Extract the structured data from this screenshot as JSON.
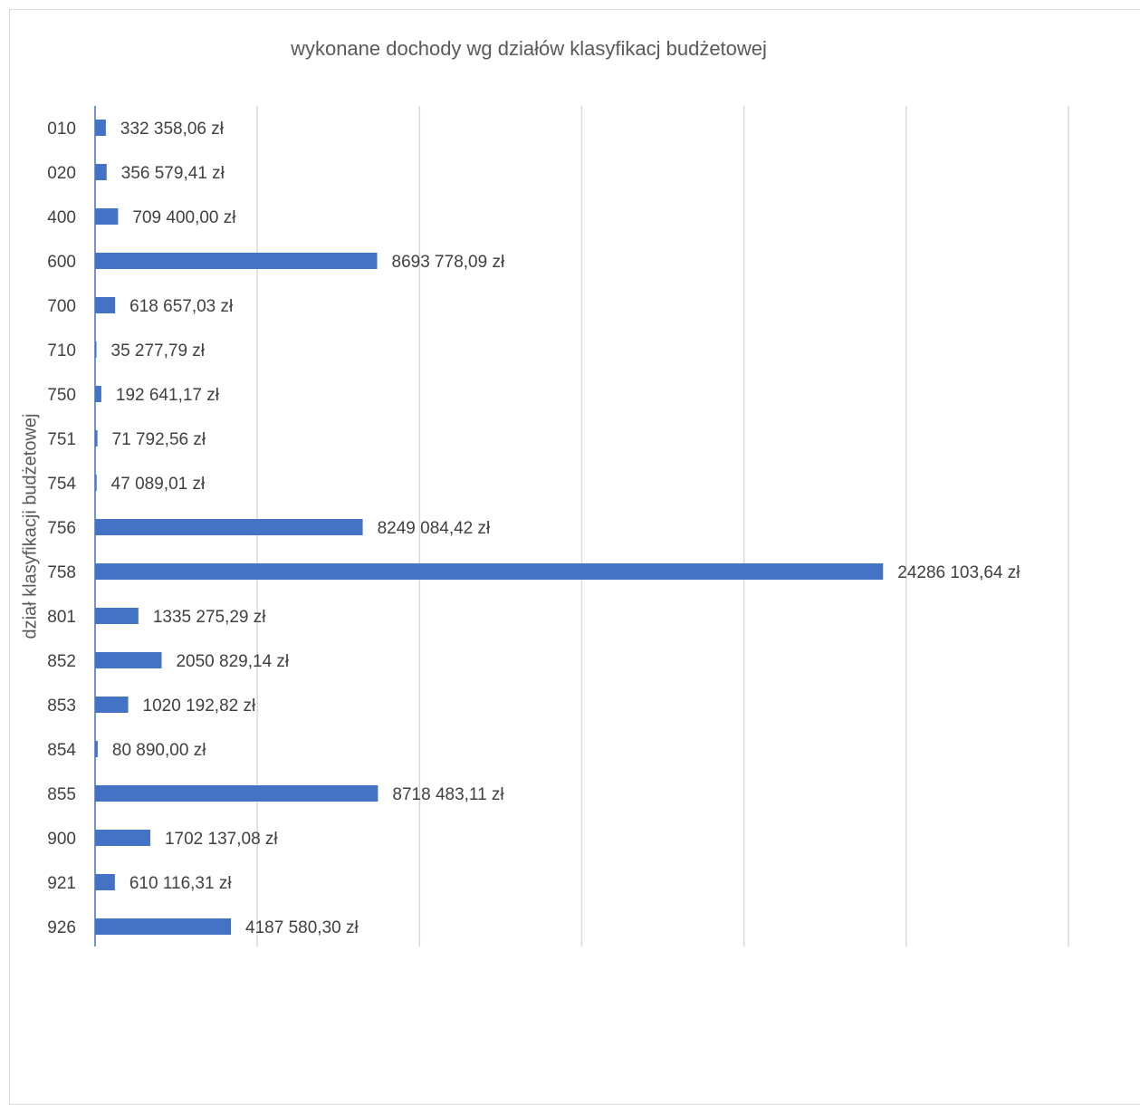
{
  "chart_data": {
    "type": "bar",
    "orientation": "horizontal",
    "title": "wykonane dochody wg działów klasyfikacj budżetowej",
    "xlabel": "",
    "ylabel": "dział klasyfikacji budżetowej",
    "xlim": [
      0,
      30000000
    ],
    "grid": "vertical gridlines",
    "bar_color": "#4472c4",
    "categories": [
      "010",
      "020",
      "400",
      "600",
      "700",
      "710",
      "750",
      "751",
      "754",
      "756",
      "758",
      "801",
      "852",
      "853",
      "854",
      "855",
      "900",
      "921",
      "926"
    ],
    "values": [
      332358.06,
      356579.41,
      709400.0,
      8693778.09,
      618657.03,
      35277.79,
      192641.17,
      71792.56,
      47089.01,
      8249084.42,
      24286103.64,
      1335275.29,
      2050829.14,
      1020192.82,
      80890.0,
      8718483.11,
      1702137.08,
      610116.31,
      4187580.3
    ],
    "data_labels": [
      "332 358,06 zł",
      "356 579,41 zł",
      "709 400,00 zł",
      "8693 778,09 zł",
      "618 657,03 zł",
      "35 277,79 zł",
      "192 641,17 zł",
      "71 792,56 zł",
      "47 089,01 zł",
      "8249 084,42 zł",
      "24286 103,64 zł",
      "1335 275,29 zł",
      "2050 829,14 zł",
      "1020 192,82 zł",
      "80 890,00 zł",
      "8718 483,11 zł",
      "1702 137,08 zł",
      "610 116,31 zł",
      "4187 580,30 zł"
    ]
  }
}
